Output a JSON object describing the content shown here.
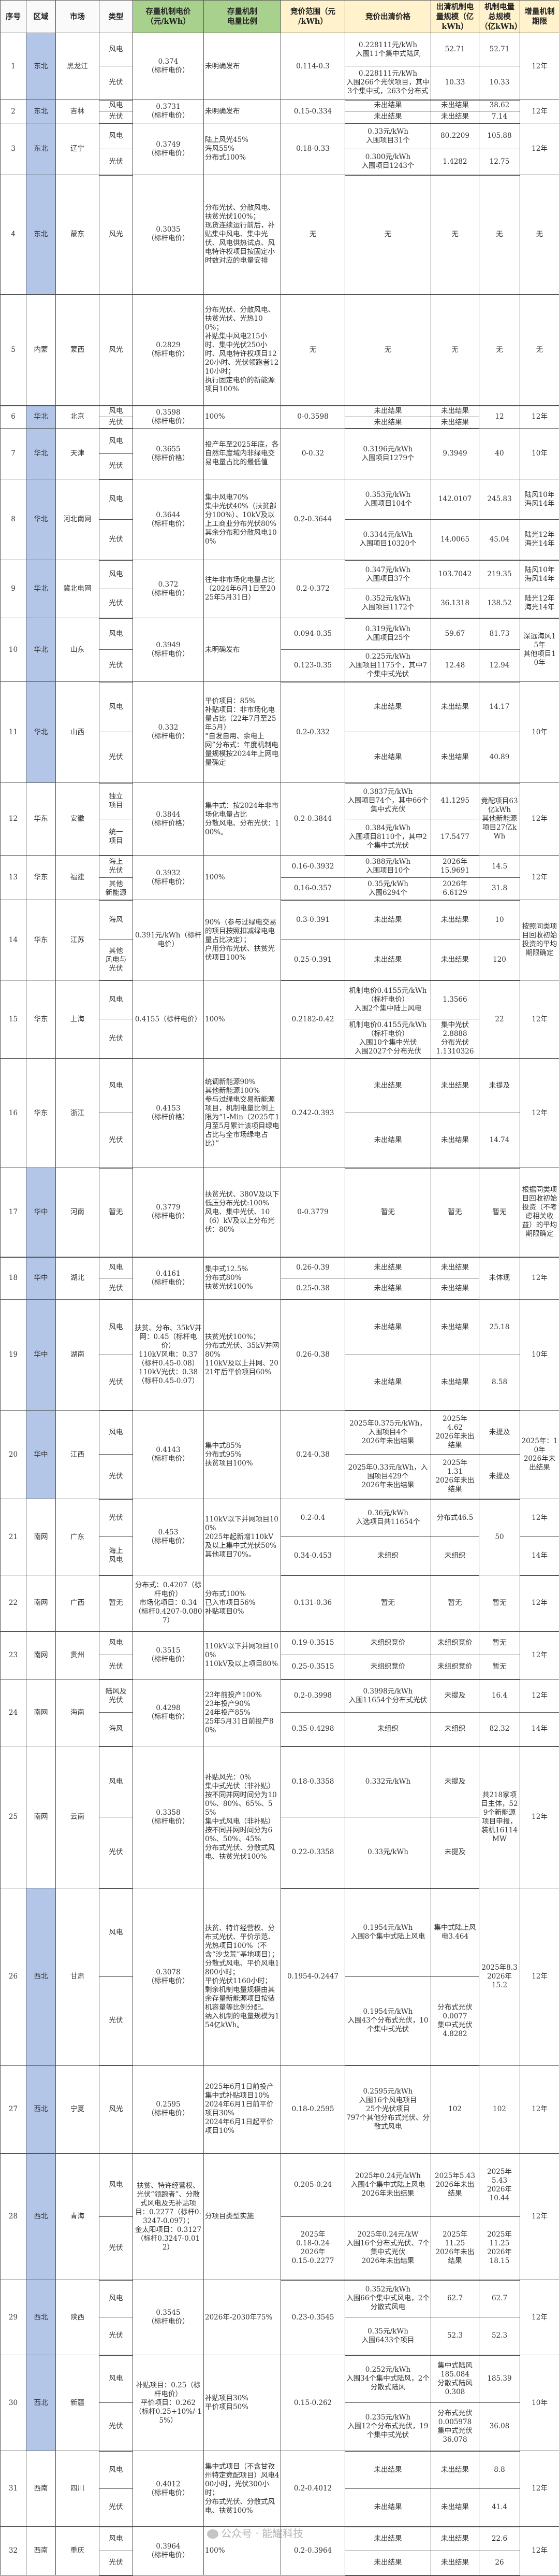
{
  "header": [
    "序号",
    "区域",
    "市场",
    "类型",
    "存量机制电价\n（元/kWh）",
    "存量机制\n电量比例",
    "竞价范围（元\n/kWh）",
    "竞价出清价格",
    "出清机制电\n量规模（亿\nkWh）",
    "机制电量\n总规模\n（亿kWh）",
    "增量机制\n期限"
  ],
  "rows": [
    {
      "no": "1",
      "region": "东北",
      "highlight": true,
      "market": "黑龙江",
      "types": [
        "风电",
        "光伏"
      ],
      "price": "0.374\n（标杆电价）",
      "ratio": "未明确发布",
      "range": "0.114-0.3",
      "clear": [
        "0.228111元/kWh\n入围11个集中式陆风",
        "0.228111元/kWh\n入围266个光伏项目，其中3个集中式，263个分布式"
      ],
      "scale": [
        "52.71",
        "10.33"
      ],
      "total": [
        "52.71",
        "10.33"
      ],
      "period": "12年"
    },
    {
      "no": "2",
      "region": "东北",
      "highlight": true,
      "market": "吉林",
      "types": [
        "风电",
        "光伏"
      ],
      "price": "0.3731\n（标杆电价）",
      "ratio": "未明确发布",
      "range": "0.15-0.334",
      "clear": [
        "未出结果",
        "未出结果"
      ],
      "scale": [
        "未出结果",
        "未出结果"
      ],
      "total": [
        "38.62",
        "7.14"
      ],
      "period": "12年"
    },
    {
      "no": "3",
      "region": "东北",
      "highlight": true,
      "market": "辽宁",
      "types": [
        "风电",
        "光伏"
      ],
      "price": "0.3749\n（标杆电价）",
      "ratio": "陆上风光45%\n海风55%\n分布式100%",
      "range": "0.18-0.33",
      "clear": [
        "0.33元/kWh\n入围项目31个",
        "0.300元/kWh\n入围项目1243个"
      ],
      "scale": [
        "80.2209",
        "1.4282"
      ],
      "total": [
        "105.88",
        "12.75"
      ],
      "period": "12年"
    },
    {
      "no": "4",
      "region": "东北",
      "highlight": true,
      "market": "蒙东",
      "types": [
        "风光"
      ],
      "price": "0.3035\n（标杆电价）",
      "ratio": "分布光伏、分散风电、扶贫光伏100%；\n现货连续运行前后，补贴集中风电、集中光伏、风电供热试点、风电特许权项目按固定小时数对应的电量安排",
      "range": "无",
      "clear": "无",
      "scale": "无",
      "total": "无",
      "period": "无"
    },
    {
      "no": "5",
      "region": "内蒙",
      "highlight": false,
      "market": "蒙西",
      "types": [
        "风光"
      ],
      "price": "0.2829\n（标杆电价）",
      "ratio": "分布光伏、分散风电、扶贫光伏、光热100%；\n补贴集中风电215小时、集中光伏250小时、风电特许权项目1220小时、光伏领跑者1210小时；\n执行固定电价的新能源项目100%",
      "range": "无",
      "clear": "无",
      "scale": "无",
      "total": "无",
      "period": "无"
    },
    {
      "no": "6",
      "region": "华北",
      "highlight": true,
      "market": "北京",
      "types": [
        "风电",
        "光伏"
      ],
      "price": "0.3598\n（标杆电价）",
      "ratio": "100%",
      "range": "0-0.3598",
      "clear": [
        "未出结果",
        "未出结果"
      ],
      "scale": [
        "未出结果",
        "未出结果"
      ],
      "total": "12",
      "period": "12年"
    },
    {
      "no": "7",
      "region": "华北",
      "highlight": true,
      "market": "天津",
      "types": [
        "风电",
        "光伏"
      ],
      "price": "0.3655\n（标杆价格）",
      "ratio": "投产年至2025年底，各自然年度域内非绿电交易电量占比的最低值",
      "range": "0-0.32",
      "clear": "0.3196元/kWh\n入围项目1279个",
      "scale": "9.3949",
      "total": "40",
      "period": "10年"
    },
    {
      "no": "8",
      "region": "华北",
      "highlight": true,
      "market": "河北南网",
      "types": [
        "风电",
        "光伏"
      ],
      "price": "0.3644\n（标杆电价）",
      "ratio": "集中风电70%\n集中光伏40%（扶贫部分100%）、10kV及以上工商业分布光伏80%\n其余分布和分散风电100%",
      "range": "0.2-0.3644",
      "clear": [
        "0.353元/kWh\n入围项目104个",
        "0.3344元/kWh\n入围项目10320个"
      ],
      "scale": [
        "142.0107",
        "14.0065"
      ],
      "total": [
        "245.83",
        "45.04"
      ],
      "period": [
        "陆风10年\n海风14年",
        "陆光12年\n海光14年"
      ]
    },
    {
      "no": "9",
      "region": "华北",
      "highlight": true,
      "market": "冀北电网",
      "types": [
        "风电",
        "光伏"
      ],
      "price": "0.372\n（标杆电价）",
      "ratio": "往年非市场化电量占比（2024年6月1日至2025年5月31日）",
      "range": "0.2-0.372",
      "clear": [
        "0.347元/kWh\n入围项目37个",
        "0.352元/kWh\n入围项目1172个"
      ],
      "scale": [
        "103.7042",
        "36.1318"
      ],
      "total": [
        "219.35",
        "138.52"
      ],
      "period": [
        "陆风10年\n海风14年",
        "陆光12年\n海光14年"
      ]
    },
    {
      "no": "10",
      "region": "华北",
      "highlight": true,
      "market": "山东",
      "types": [
        "风电",
        "光伏"
      ],
      "price": "0.3949\n（标杆电价）",
      "ratio": "未明确发布",
      "range": [
        "0.094-0.35",
        "0.123-0.35"
      ],
      "clear": [
        "0.319元/kWh\n入围项目25个",
        "0.225元/kWh\n入围项目1175个，其中7个集中式光伏"
      ],
      "scale": [
        "59.67",
        "12.48"
      ],
      "total": [
        "81.73",
        "12.94"
      ],
      "period": "深远海风15年\n其他项目10年"
    },
    {
      "no": "11",
      "region": "华北",
      "highlight": true,
      "market": "山西",
      "types": [
        "风电",
        "光伏"
      ],
      "price": "0.332\n（标杆电价）",
      "ratio": "平价项目：85%\n补贴项目：非市场化电量占比（22年7月至25年5月）\n“自发自用、余电上网”分布式：年度机制电量规模按2024年上网电量确定",
      "range": "0.2-0.332",
      "clear": [
        "未出结果",
        "未出结果"
      ],
      "scale": [
        "未出结果",
        "未出结果"
      ],
      "total": [
        "14.17",
        "40.89"
      ],
      "period": "10年"
    },
    {
      "no": "12",
      "region": "华东",
      "highlight": false,
      "market": "安徽",
      "types": [
        "独立\n项目",
        "统一\n项目"
      ],
      "price": "0.3844\n（标杆价格）",
      "ratio": "集中式：按2024年非市场化电量占比\n分散风电、分布光伏：100%。",
      "range": "0.2-0.3844",
      "clear": [
        "0.3837元/kWh\n入围项目74个，其中66个集中式光伏",
        "0.384元/kWh\n入围项目8110个，其中2个集中式光伏"
      ],
      "scale": [
        "41.1295",
        "17.5477"
      ],
      "total": "竞配项目63亿kWh\n其他新能源项目27亿kWh",
      "period": "12年"
    },
    {
      "no": "13",
      "region": "华东",
      "highlight": false,
      "market": "福建",
      "types": [
        "海上\n光伏",
        "其他\n新能源"
      ],
      "price": "0.3932\n（标杆电价）",
      "ratio": "100%",
      "range": [
        "0.16-0.3932",
        "0.16-0.357"
      ],
      "clear": [
        "0.388元/kWh\n入围项目10个",
        "0.35元/kWh\n入围6294个"
      ],
      "scale": [
        "2026年\n15.9691",
        "2026年\n6.6129"
      ],
      "total": [
        "14.5",
        "31.8"
      ],
      "period": "12年"
    },
    {
      "no": "14",
      "region": "华东",
      "highlight": false,
      "market": "江苏",
      "types": [
        "海风",
        "其他\n风电与\n光伏"
      ],
      "price": "0.391元/kWh（标杆电价）",
      "ratio": "90%（参与过绿电交易的项目按照扣减绿电电量占比决定）；\n户用分布光伏、扶贫光伏项目100%",
      "range": [
        "0.3-0.391",
        "0.25-0.391"
      ],
      "clear": [
        "未出结果",
        "未出结果"
      ],
      "scale": [
        "未出结果",
        "未出结果"
      ],
      "total": [
        "10",
        "120"
      ],
      "period": "按照同类项目回收初始投资的平均期限确定"
    },
    {
      "no": "15",
      "region": "华东",
      "highlight": false,
      "market": "上海",
      "types": [
        "风电",
        "光伏"
      ],
      "price": "0.4155（标杆电价）",
      "ratio": "100%",
      "range": "0.2182-0.42",
      "clear": [
        "机制电价0.4155元/kWh（标杆电价）\n入围2个集中陆上风电",
        "机制电价0.4155元/kWh（标杆电价）\n入围10个集中光伏\n入围2027个分布光伏"
      ],
      "scale": [
        "1.3566",
        "集中光伏\n2.8888\n分布光伏\n1.1310326"
      ],
      "total": "22",
      "period": "12年"
    },
    {
      "no": "16",
      "region": "华东",
      "highlight": false,
      "market": "浙江",
      "types": [
        "风电",
        "光伏"
      ],
      "price": "0.4153\n（标杆价格）",
      "ratio": "统调新能源90%\n其他新能源100%\n参与过绿电交易新能源项目，机制电量比例上限为“1-Min（2025年1月至5月累计该项目绿电占比与全市场绿电占比）”",
      "range": "0.242-0.393",
      "clear": [
        "未出结果",
        "未出结果"
      ],
      "scale": [
        "未出结果",
        "未出结果"
      ],
      "total": [
        "未提及",
        "14.74"
      ],
      "period": "12年"
    },
    {
      "no": "17",
      "region": "华中",
      "highlight": true,
      "market": "河南",
      "types": [
        "暂无"
      ],
      "price": "0.3779\n（标杆电价）",
      "ratio": "扶贫光伏、380V及以下低压分布光伏:100%\n风电、集中光伏、10（6）kV及以上分布光伏：80%",
      "range": "0-0.3779",
      "clear": "暂无",
      "scale": "暂无",
      "total": "暂无",
      "period": "根据同类项目回收初始投资（不考虑相关收益）的平均期限确定"
    },
    {
      "no": "18",
      "region": "华中",
      "highlight": true,
      "market": "湖北",
      "types": [
        "风电",
        "光伏"
      ],
      "price": "0.4161\n（标杆电价）",
      "ratio": "集中式12.5%\n分布式80%\n扶贫光伏100%",
      "range": [
        "0.26-0.39",
        "0.25-0.38"
      ],
      "clear": [
        "未出结果",
        "未出结果"
      ],
      "scale": [
        "未出结果",
        "未出结果"
      ],
      "total": "未体现",
      "period": "12年"
    },
    {
      "no": "19",
      "region": "华中",
      "highlight": true,
      "market": "湖南",
      "types": [
        "风电",
        "光伏"
      ],
      "price": "扶贫、分布、35kV并网：0.45（标杆电价）\n110kV风电：0.37（标杆0.45-0.08）\n110kV光伏：0.38（标杆0.45-0.07）",
      "ratio": "扶贫光伏100%；\n分布式光伏、35kV并网80%\n110kV及以上并网、2021年后平价项目60%",
      "range": "0.26-0.38",
      "clear": [
        "未出结果",
        "未出结果"
      ],
      "scale": [
        "未出结果",
        "未出结果"
      ],
      "total": [
        "25.18",
        "8.58"
      ],
      "period": "10年"
    },
    {
      "no": "20",
      "region": "华中",
      "highlight": true,
      "market": "江西",
      "types": [
        "风电",
        "光伏"
      ],
      "price": "0.4143\n（标杆电价）",
      "ratio": "集中式85%\n分布式95%\n扶贫项目100%",
      "range": "0.24-0.38",
      "clear": [
        "2025年0.375元/kWh，入围项目4个\n2026年未出结果",
        "2025年0.33元/kWh，入围项目429个\n2026年未出结果"
      ],
      "scale": [
        "2025年\n4.62\n2026年未出结果",
        "2025年\n1.31\n2026年未出结果"
      ],
      "total": [
        "未提及",
        "未提及"
      ],
      "period": "2025年：10年\n2026年未出结果"
    },
    {
      "no": "21",
      "region": "南网",
      "highlight": false,
      "market": "广东",
      "types": [
        "光伏",
        "海上\n风电"
      ],
      "price": "0.453\n（标杆电价）",
      "ratio": "110kV以下并网项目100%\n2025年起新增110kV及以上集中式光伏50%\n其他项目70%。",
      "range": [
        "0.2-0.4",
        "0.34-0.453"
      ],
      "clear": [
        "0.36元/kWh\n入选项目共11654个",
        "未组织"
      ],
      "scale": [
        "分布式46.5",
        "未组织"
      ],
      "total": "50",
      "period": [
        "12年",
        "14年"
      ]
    },
    {
      "no": "22",
      "region": "南网",
      "highlight": false,
      "market": "广西",
      "types": [
        "暂无"
      ],
      "price": "分布式：0.4207（标杆电价）\n市场化项目：0.34（标杆0.4207-0.0807）",
      "ratio": "分布式100%\n已入市项目56%\n补贴项目0%",
      "range": "0.131-0.36",
      "clear": "暂无",
      "scale": "暂无",
      "total": "暂无",
      "period": "12年"
    },
    {
      "no": "23",
      "region": "南网",
      "highlight": false,
      "market": "贵州",
      "types": [
        "风电",
        "光伏"
      ],
      "price": "0.3515\n（标杆电价）",
      "ratio": "110kV以下并网项目100%\n110kV及以上项目80%",
      "range": [
        "0.19-0.3515",
        "0.25-0.3515"
      ],
      "clear": [
        "未组织竞价",
        "未组织竞价"
      ],
      "scale": [
        "未组织竞价",
        "未组织竞价"
      ],
      "total": [
        "暂无",
        "暂无"
      ],
      "period": "12年"
    },
    {
      "no": "24",
      "region": "南网",
      "highlight": false,
      "market": "海南",
      "types": [
        "陆风及\n光伏",
        "海风"
      ],
      "price": "0.4298\n（标杆电价）",
      "ratio": "23年前投产100%\n23年投产90%\n24年投产85%\n25年5月31日前投产80%",
      "range": [
        "0.2-0.3998",
        "0.35-0.4298"
      ],
      "clear": [
        "0.3998元/kWh\n入围11654个分布式光伏",
        "未组织"
      ],
      "scale": [
        "未提及",
        "未组织"
      ],
      "total": [
        "16.4",
        "82.32"
      ],
      "period": [
        "12年",
        "14年"
      ]
    },
    {
      "no": "25",
      "region": "南网",
      "highlight": false,
      "market": "云南",
      "types": [
        "风电",
        "光伏"
      ],
      "price": "0.3358\n（标杆电价）",
      "ratio": "补贴风光：0%\n集中式光伏（非补贴）按不同并网时间分为100%、80%、65%、55%\n集中式风电（非补贴）按不同并网时间分为60%、50%、45%\n分布式光伏、分散式风电、扶贫光伏100%",
      "range": [
        "0.18-0.3358",
        "0.22-0.3358"
      ],
      "clear": [
        "0.332元/kWh",
        "0.33元/kWh"
      ],
      "scale": [
        "未提及",
        "未提及"
      ],
      "total": "共218家项目主体，529个新能源项目申报，装机16114MW",
      "period": "12年"
    },
    {
      "no": "26",
      "region": "西北",
      "highlight": true,
      "market": "甘肃",
      "types": [
        "风电",
        "光伏"
      ],
      "price": "0.3078\n（标杆电价）",
      "ratio": "扶贫、特许经营权、分布式光伏、平价示范、光热项目100%（不含“沙戈荒”基地项目）；\n分散式风电、平价风电1800小时；\n平价光伏1160小时；\n剩余机制电量规模由其余存量新能源项目按装机容量等比例分配。\n纳入机制的电量规模为154亿kWh。",
      "range": "0.1954-0.2447",
      "clear": [
        "0.1954元/kWh\n入围8个集中式陆上风电",
        "0.1954元/kWh\n入围43个分布式光伏，10个集中式光伏"
      ],
      "scale": [
        "集中式陆上风电3.464",
        "分布式光伏\n0.0077\n集中式光伏\n4.8282"
      ],
      "total": "2025年8.3\n2026年\n15.2",
      "period": "12年"
    },
    {
      "no": "27",
      "region": "西北",
      "highlight": true,
      "market": "宁夏",
      "types": [
        "风光"
      ],
      "price": "0.2595\n（标杆电价）",
      "ratio": "2025年6月1日前投产集中式补贴项目10%\n2024年6月1日前平价项目30%\n2024年6月1日起平价项目10%",
      "range": "0.18-0.2595",
      "clear": "0.2595元/kWh\n入围16个风电项目\n25个光伏项目\n797个其他分布式光伏、分散式风电",
      "scale": "102",
      "total": "102",
      "period": "12年"
    },
    {
      "no": "28",
      "region": "西北",
      "highlight": true,
      "market": "青海",
      "types": [
        "风电",
        "光伏"
      ],
      "price": "扶贫、特许经营权、光伏“领跑者”、分散式风电及无补贴项目：0.2277（标杆0.3247-0.097）；\n金太阳项目：0.3127（标杆0.3247-0.012）",
      "ratio": "分项目类型实施",
      "range": [
        "0.205-0.24",
        "2025年\n0.18-0.24\n2026年\n0.15-0.2277"
      ],
      "clear": [
        "2025年0.24元/kWh\n入围4个集中式陆上风电\n2026年未出结果",
        "2025年0.24元/kW\n入围16个分布式光伏、7个集中式光伏\n2026年未出结果"
      ],
      "scale": [
        "2025年5.43\n2026年未出结果",
        "2025年\n11.25\n2026年未出结果"
      ],
      "total": [
        "2025年\n5.43\n2026年\n10.44",
        "2025年\n11.25\n2026年\n18.15"
      ],
      "period": "12年"
    },
    {
      "no": "29",
      "region": "西北",
      "highlight": true,
      "market": "陕西",
      "types": [
        "风电",
        "光伏"
      ],
      "price": "0.3545\n（标杆电价）",
      "ratio": "2026年-2030年75%",
      "range": "0.23-0.3545",
      "clear": [
        "0.352元/kWh\n入围66个集中式风电，2个分散式风电",
        "0.35元/kWh\n入围6433个项目"
      ],
      "scale": [
        "62.7",
        "52.3"
      ],
      "total": [
        "62.7",
        "52.3"
      ],
      "period": "12年"
    },
    {
      "no": "30",
      "region": "西北",
      "highlight": true,
      "market": "新疆",
      "types": [
        "风电",
        "光伏"
      ],
      "price": "补贴项目：0.25（标杆电价）\n平价项目：0.262（标杆0.25+10%/-15%）",
      "ratio": "补贴项目30%\n平价项目50%",
      "range": "0.15-0.262",
      "clear": [
        "0.252元/kWh\n入围34个集中式陆风，2个分散式陆风",
        "0.235元/kWh\n入围12个分布式光伏，19个集中式光伏"
      ],
      "scale": [
        "集中式陆风\n185.084\n分散式陆风\n0.308",
        "分布式光伏\n0.005978\n集中式光伏\n36.078"
      ],
      "total": [
        "185.39",
        "36.08"
      ],
      "period": "10年"
    },
    {
      "no": "31",
      "region": "西南",
      "highlight": false,
      "market": "四川",
      "types": [
        "风电",
        "光伏"
      ],
      "price": "0.4012\n（标杆电价）",
      "ratio": "集中式项目（不含甘孜州特定竞配项目）风电400小时，光伏300小时；\n分布式光伏、分散式风电、扶贫100%",
      "range": "0.2-0.4012",
      "clear": [
        "未出结果",
        "未出结果"
      ],
      "scale": [
        "未出结果",
        "未出结果"
      ],
      "total": [
        "8.8",
        "41.4"
      ],
      "period": "12年"
    },
    {
      "no": "32",
      "region": "西南",
      "highlight": false,
      "market": "重庆",
      "types": [
        "风电",
        "光伏"
      ],
      "price": "0.3964\n（标杆电价）",
      "ratio": "100%",
      "range": "0.2-0.3964",
      "clear": [
        "未出结果",
        "未出结果"
      ],
      "scale": [
        "未出结果",
        "未出结果"
      ],
      "total": [
        "22.6",
        "26"
      ],
      "period": "12年"
    }
  ],
  "watermark": "公众号 · 能耀科技",
  "colors": {
    "header_green": "#a9d18e",
    "header_yellow": "#fff2cc",
    "region_highlight": "#b4c6e7"
  }
}
